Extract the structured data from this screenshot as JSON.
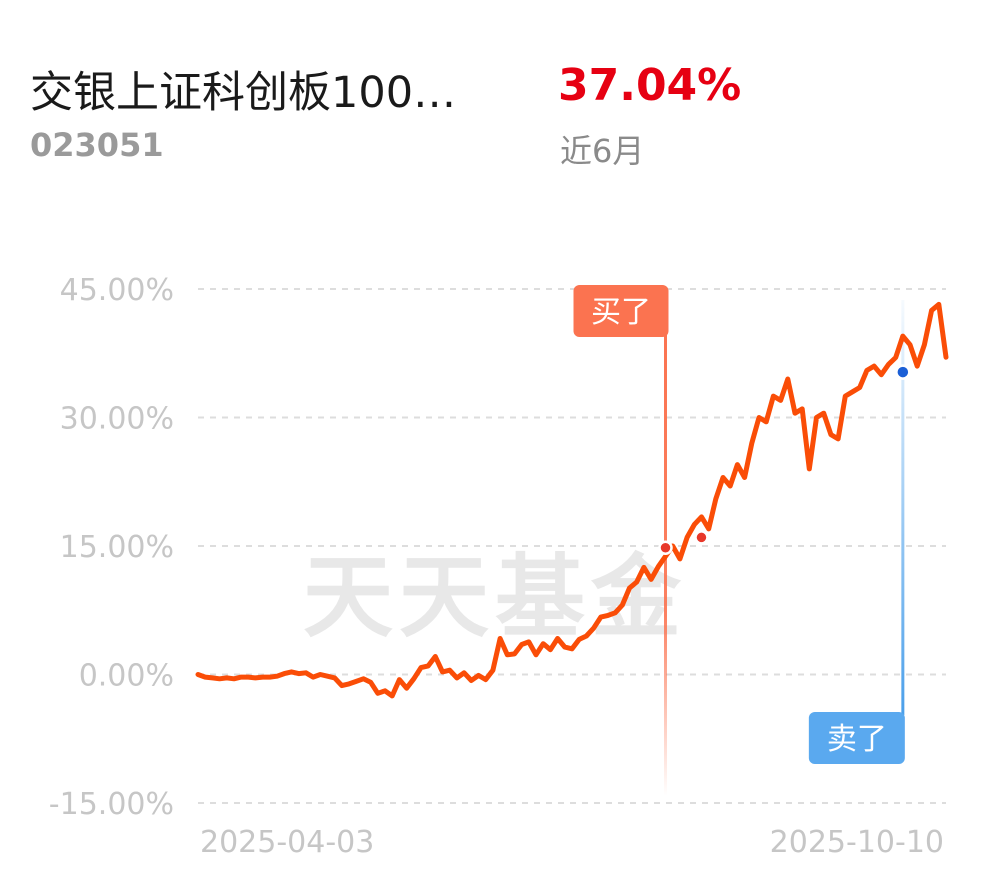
{
  "fund": {
    "name": "交银上证科创板100…",
    "code": "023051",
    "return_value": "37.04%",
    "return_period": "近6月"
  },
  "watermark": "天天基金",
  "colors": {
    "line": "#fa4d07",
    "return": "#e60012",
    "buy_tag": "#fb7350",
    "sell_tag": "#5aa9ef",
    "grid": "#dddddd",
    "axis_text": "#c6c6c6"
  },
  "chart_data": {
    "type": "line",
    "title": "",
    "xlabel": "",
    "ylabel": "",
    "x_start_label": "2025-04-03",
    "x_end_label": "2025-10-10",
    "ylim": [
      -15,
      45
    ],
    "yticks": [
      45,
      30,
      15,
      0,
      -15
    ],
    "ytick_labels": [
      "45.00%",
      "30.00%",
      "15.00%",
      "0.00%",
      "-15.00%"
    ],
    "grid": true,
    "legend": "none",
    "series": [
      {
        "values": [
          0,
          -0.3,
          -0.4,
          -0.5,
          -0.4,
          -0.5,
          -0.3,
          -0.3,
          -0.4,
          -0.3,
          -0.3,
          -0.2,
          0.1,
          0.3,
          0.1,
          0.2,
          -0.3,
          0,
          -0.2,
          -0.4,
          -1.3,
          -1.1,
          -0.8,
          -0.5,
          -0.9,
          -2.2,
          -1.9,
          -2.5,
          -0.6,
          -1.6,
          -0.5,
          0.8,
          1.0,
          2.1,
          0.3,
          0.5,
          -0.4,
          0.2,
          -0.7,
          -0.1,
          -0.6,
          0.5,
          4.2,
          2.3,
          2.4,
          3.5,
          3.8,
          2.3,
          3.6,
          2.9,
          4.2,
          3.2,
          3.0,
          4.1,
          4.5,
          5.4,
          6.7,
          6.9,
          7.2,
          8.1,
          10.1,
          10.8,
          12.5,
          11.1,
          12.6,
          13.8,
          15.0,
          13.5,
          16.0,
          17.5,
          18.4,
          17.0,
          20.5,
          23.0,
          22.0,
          24.5,
          23.0,
          27.0,
          30.0,
          29.5,
          32.5,
          32.0,
          34.5,
          30.5,
          31.0,
          24.0,
          30.0,
          30.5,
          28.0,
          27.5,
          32.5,
          33.0,
          33.5,
          35.5,
          36.0,
          35.0,
          36.2,
          37.0,
          39.5,
          38.5,
          36.0,
          38.5,
          42.5,
          43.2,
          37.04
        ]
      }
    ],
    "buy_marker": {
      "label": "买了",
      "index": 65,
      "value": 14.8
    },
    "buy_marker_2": {
      "index": 70,
      "value": 16.0
    },
    "sell_marker": {
      "label": "卖了",
      "index": 98,
      "value": 35.3
    }
  }
}
